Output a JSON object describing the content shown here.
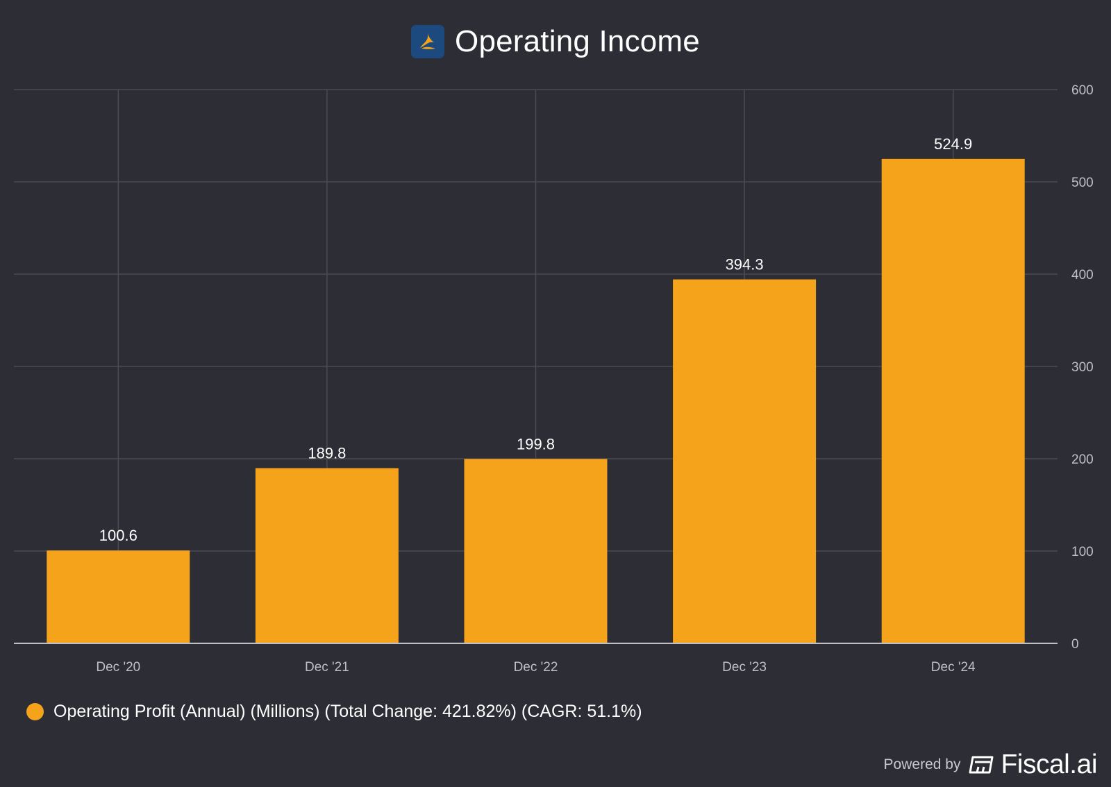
{
  "header": {
    "title": "Operating Income",
    "logo_icon": "company-logo-icon"
  },
  "chart_data": {
    "type": "bar",
    "title": "Operating Income",
    "categories": [
      "Dec '20",
      "Dec '21",
      "Dec '22",
      "Dec '23",
      "Dec '24"
    ],
    "series": [
      {
        "name": "Operating Profit (Annual) (Millions) (Total Change: 421.82%) (CAGR: 51.1%)",
        "values": [
          100.6,
          189.8,
          199.8,
          394.3,
          524.9
        ],
        "labels": [
          "100.6",
          "189.8",
          "199.8",
          "394.3",
          "524.9"
        ],
        "color": "#f6a31c"
      }
    ],
    "y_ticks": [
      "0",
      "100",
      "200",
      "300",
      "400",
      "500",
      "600"
    ],
    "ylim": [
      0,
      600
    ],
    "y_axis_side": "right",
    "grid": true,
    "legend_position": "bottom-left"
  },
  "legend": {
    "label": "Operating Profit (Annual) (Millions) (Total Change: 421.82%) (CAGR: 51.1%)"
  },
  "footer": {
    "powered_by": "Powered by",
    "brand": "Fiscal.ai",
    "brand_icon": "fiscal-logo-icon"
  },
  "colors": {
    "background": "#2c2d35",
    "bar": "#f6a31c",
    "grid": "#4a4b53",
    "axis": "#bfc0c5",
    "text": "#ffffff",
    "logo_bg": "#1c4a7f"
  }
}
